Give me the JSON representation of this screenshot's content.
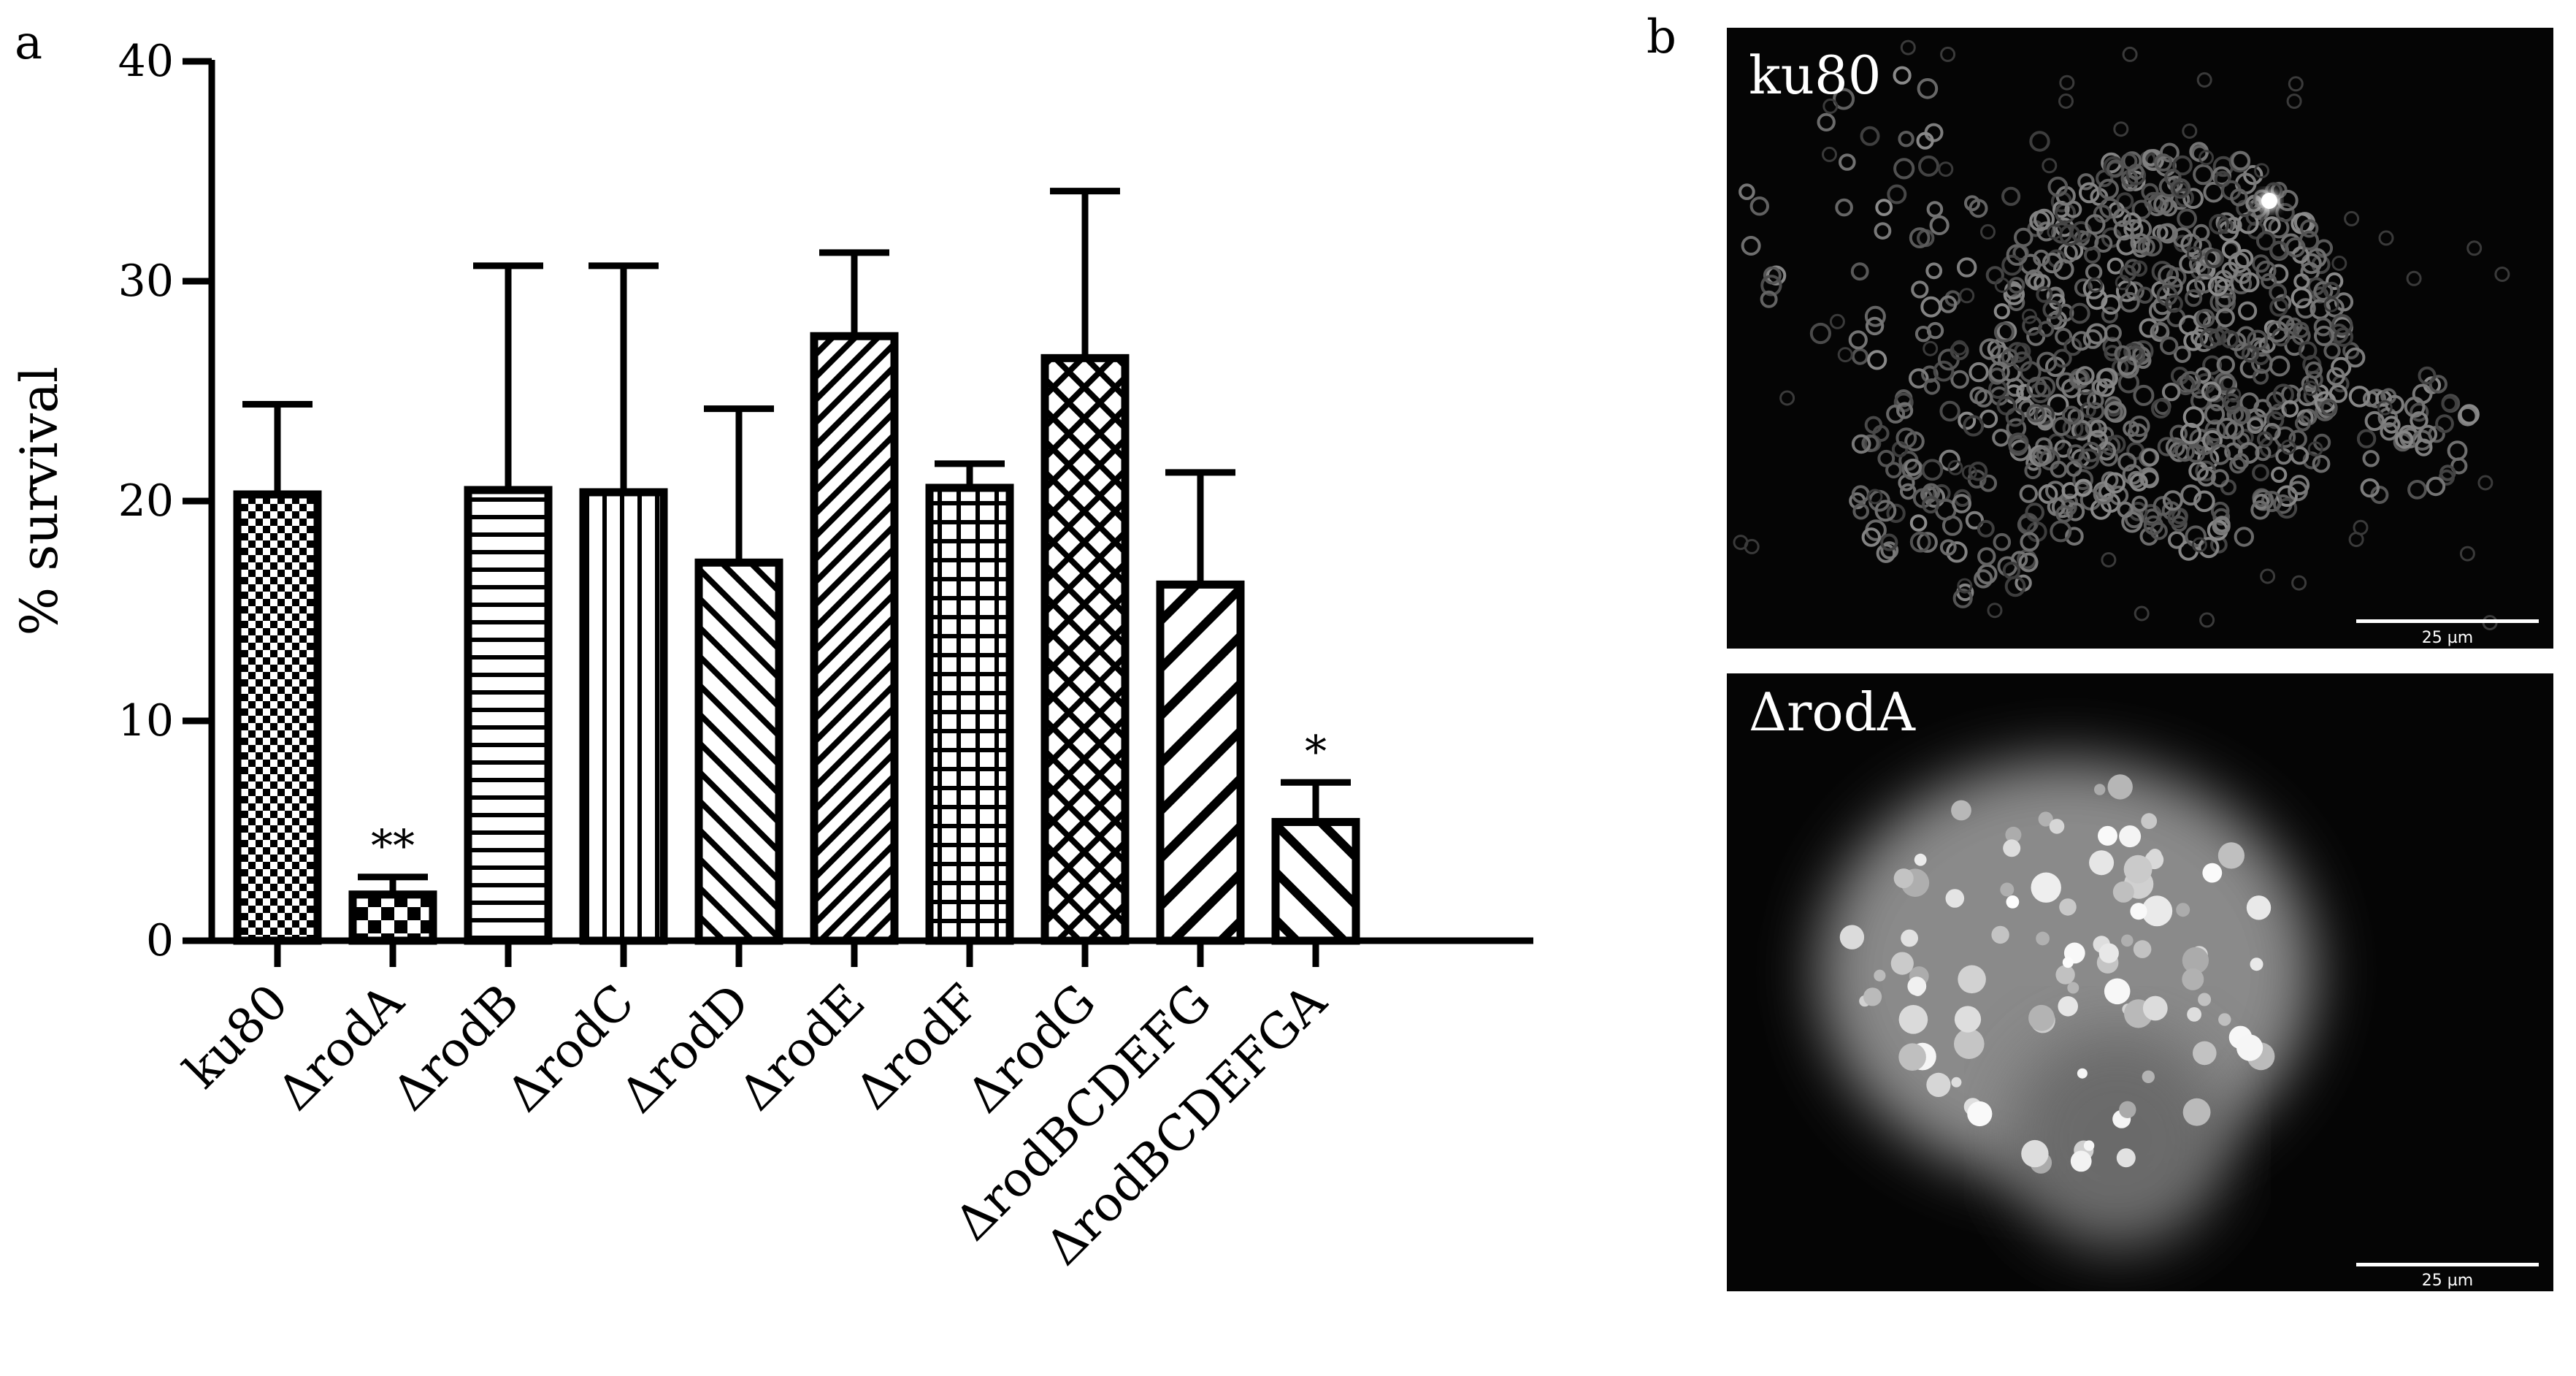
{
  "panels": {
    "a": "a",
    "b": "b"
  },
  "chart_data": {
    "type": "bar",
    "categories": [
      "ku80",
      "ΔrodA",
      "ΔrodB",
      "ΔrodC",
      "ΔrodD",
      "ΔrodE",
      "ΔrodF",
      "ΔrodG",
      "ΔrodBCDEFG",
      "ΔrodBCDEFGA"
    ],
    "values": [
      20.3,
      2.1,
      20.5,
      20.4,
      17.2,
      27.5,
      20.6,
      26.5,
      16.2,
      5.4
    ],
    "errors": [
      4.1,
      0.8,
      10.2,
      10.3,
      7.0,
      3.8,
      1.1,
      7.6,
      5.1,
      1.8
    ],
    "significance": [
      "",
      "**",
      "",
      "",
      "",
      "",
      "",
      "",
      "",
      "*"
    ],
    "ylabel": "% survival",
    "ylim": [
      0,
      40
    ],
    "yticks": [
      0,
      10,
      20,
      30,
      40
    ],
    "patterns": [
      "checker-fine",
      "checker",
      "hlines",
      "vlines",
      "diag-right",
      "diag-right-dense",
      "grid",
      "crosshatch",
      "diag-left-wide",
      "diag-right-wide"
    ],
    "grid": false,
    "legend": "none"
  },
  "micrographs": [
    {
      "label": "ku80",
      "scale_text": "25 µm",
      "style": "dispersed"
    },
    {
      "label": "ΔrodA",
      "scale_text": "25 µm",
      "style": "clumped"
    }
  ]
}
